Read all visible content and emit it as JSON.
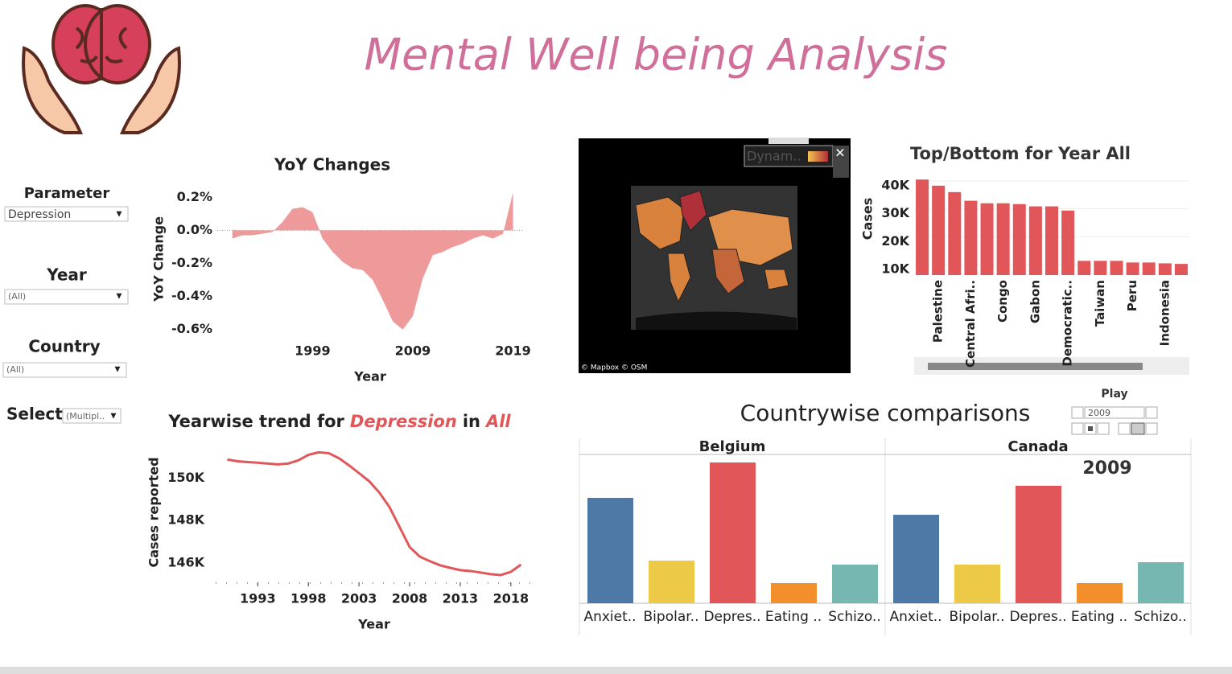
{
  "header": {
    "title": "Mental Well being Analysis"
  },
  "filters": [
    {
      "label": "Parameter",
      "value": "Depression"
    },
    {
      "label": "Year",
      "value": "(All)"
    },
    {
      "label": "Country",
      "value": "(All)"
    },
    {
      "label": "Select",
      "value": "(Multipl.."
    }
  ],
  "play": {
    "label": "Play",
    "value": "2009"
  },
  "chart_data": [
    {
      "type": "area",
      "title": "YoY Changes",
      "x_label": "Year",
      "y_label": "YoY Change",
      "color": "#ef9a9a",
      "x": [
        1991,
        1992,
        1993,
        1994,
        1995,
        1996,
        1997,
        1998,
        1999,
        2000,
        2001,
        2002,
        2003,
        2004,
        2005,
        2006,
        2007,
        2008,
        2009,
        2010,
        2011,
        2012,
        2013,
        2014,
        2015,
        2016,
        2017,
        2018,
        2019
      ],
      "values": [
        -0.05,
        -0.03,
        -0.03,
        -0.02,
        -0.01,
        0.05,
        0.13,
        0.14,
        0.11,
        -0.05,
        -0.13,
        -0.19,
        -0.23,
        -0.24,
        -0.3,
        -0.42,
        -0.55,
        -0.6,
        -0.52,
        -0.29,
        -0.15,
        -0.13,
        -0.1,
        -0.08,
        -0.05,
        -0.03,
        -0.05,
        -0.02,
        0.23
      ],
      "xlim": [
        1989.5,
        2020
      ],
      "xticks": [
        1999,
        2009,
        2019
      ],
      "ylim": [
        -0.65,
        0.25
      ],
      "yticks": [
        {
          "value": 0.2,
          "label": "0.2%"
        },
        {
          "value": 0,
          "label": "0.0%"
        },
        {
          "value": -0.2,
          "label": "-0.2%"
        },
        {
          "value": -0.4,
          "label": "-0.4%"
        },
        {
          "value": -0.6,
          "label": "-0.6%"
        }
      ]
    },
    {
      "type": "map",
      "legend_title": "Dynam..",
      "attribution": "© Mapbox © OSM"
    },
    {
      "type": "bar",
      "title": "Top/Bottom for Year All",
      "y_label": "Cases",
      "color": "#e15759",
      "categories": [
        null,
        "Palestine",
        null,
        "Central Afri..",
        null,
        "Congo",
        null,
        "Gabon",
        null,
        "Democratic..",
        null,
        "Taiwan",
        null,
        "Peru",
        null,
        "Indonesia",
        null
      ],
      "values": [
        40500,
        38300,
        36000,
        32900,
        32000,
        32000,
        31700,
        30900,
        30900,
        29400,
        11400,
        11400,
        11400,
        10800,
        10800,
        10500,
        10300
      ],
      "ylim": [
        6300,
        42000
      ],
      "grid": true,
      "yticks": [
        {
          "value": 10000,
          "label": "10K"
        },
        {
          "value": 20000,
          "label": "20K"
        },
        {
          "value": 30000,
          "label": "30K"
        },
        {
          "value": 40000,
          "label": "40K"
        }
      ]
    },
    {
      "type": "line",
      "title_parts": [
        "Yearwise trend for",
        "Depression",
        "in",
        "All"
      ],
      "x_label": "Year",
      "y_label": "Cases reported",
      "color": "#e15759",
      "x": [
        1990,
        1991,
        1992,
        1993,
        1994,
        1995,
        1996,
        1997,
        1998,
        1999,
        2000,
        2001,
        2002,
        2003,
        2004,
        2005,
        2006,
        2007,
        2008,
        2009,
        2010,
        2011,
        2012,
        2013,
        2014,
        2015,
        2016,
        2017,
        2018,
        2019
      ],
      "values": [
        150870,
        150790,
        150750,
        150720,
        150680,
        150640,
        150680,
        150830,
        151090,
        151210,
        151170,
        150940,
        150600,
        150230,
        149850,
        149320,
        148640,
        147700,
        146750,
        146300,
        146080,
        145890,
        145770,
        145660,
        145620,
        145550,
        145470,
        145430,
        145580,
        145920
      ],
      "xlim": [
        1989,
        2020
      ],
      "xticks": [
        1993,
        1998,
        2003,
        2008,
        2013,
        2018
      ],
      "ylim": [
        145050,
        151300
      ],
      "yticks": [
        {
          "value": 146000,
          "label": "146K"
        },
        {
          "value": 148000,
          "label": "148K"
        },
        {
          "value": 150000,
          "label": "150K"
        }
      ]
    },
    {
      "type": "grouped_bar",
      "title": "Countrywise comparisons",
      "annotation": "2009",
      "categories": [
        "Anxiet..",
        "Bipolar..",
        "Depres..",
        "Eating ..",
        "Schizo.."
      ],
      "colors": [
        "#4e79a7",
        "#edc948",
        "#e15759",
        "#f28e2b",
        "#76b7b2"
      ],
      "ylim": [
        0,
        180
      ],
      "panels": [
        {
          "name": "Belgium",
          "values": [
            131,
            53,
            175,
            25,
            48
          ]
        },
        {
          "name": "Canada",
          "values": [
            110,
            48,
            146,
            25,
            51
          ]
        }
      ]
    }
  ]
}
